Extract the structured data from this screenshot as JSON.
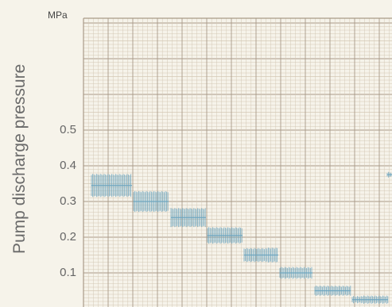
{
  "chart_data": {
    "type": "line",
    "ylabel": "Pump discharge pressure",
    "unit": "MPa",
    "ylim": [
      0,
      0.8
    ],
    "yticks": [
      "0.5",
      "0.4",
      "0.3",
      "0.2",
      "0.1"
    ],
    "grid": true,
    "series": [
      {
        "values": [
          0.345,
          0.3,
          0.255,
          0.205,
          0.15,
          0.1,
          0.05,
          0.025,
          0.375
        ]
      }
    ]
  },
  "colors": {
    "background": "#f6f3ea",
    "grid_major": "#a99a88",
    "grid_minor": "#d4c8b5",
    "trace": "#6fa6bf"
  }
}
